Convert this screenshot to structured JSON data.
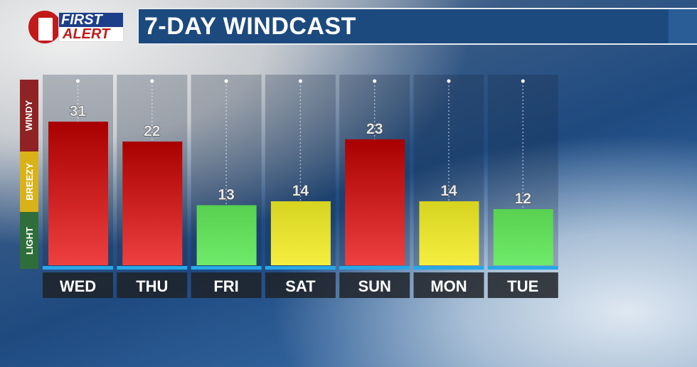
{
  "logo": {
    "line1": "FIRST",
    "line2": "ALERT",
    "number": "1"
  },
  "header": {
    "title": "7-DAY WINDCAST"
  },
  "legend": [
    {
      "label": "WINDY",
      "color": "#8f2323"
    },
    {
      "label": "BREEZY",
      "color": "#d9b21a"
    },
    {
      "label": "LIGHT",
      "color": "#2f6e3a"
    }
  ],
  "chart_data": {
    "type": "bar",
    "title": "7-DAY WINDCAST",
    "categories": [
      "WED",
      "THU",
      "FRI",
      "SAT",
      "SUN",
      "MON",
      "TUE"
    ],
    "values": [
      31,
      22,
      13,
      14,
      23,
      14,
      12
    ],
    "bar_categories": [
      "WINDY",
      "WINDY",
      "LIGHT",
      "BREEZY",
      "WINDY",
      "BREEZY",
      "LIGHT"
    ],
    "category_colors": {
      "WINDY": "#d41515",
      "BREEZY": "#e6e02a",
      "LIGHT": "#66e060"
    },
    "weekend_label_color": "#f0a020",
    "weekend": [
      "SAT",
      "SUN"
    ],
    "grid": false
  }
}
